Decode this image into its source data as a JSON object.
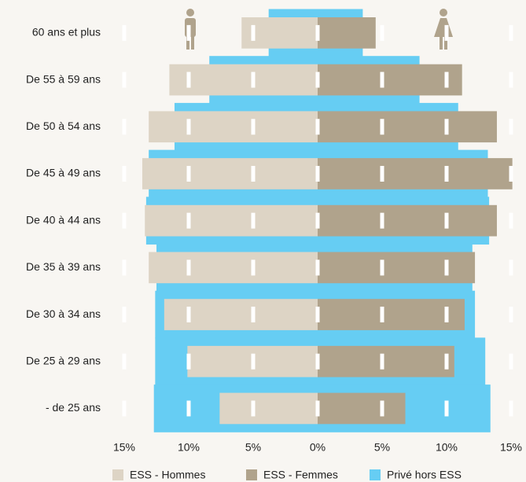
{
  "chart_data": {
    "type": "pyramid",
    "categories": [
      "60 ans et plus",
      "De 55 à 59 ans",
      "De 50 à 54 ans",
      "De 45 à 49 ans",
      "De 40 à 44 ans",
      "De 35 à 39 ans",
      "De 30 à 34 ans",
      "De 25 à 29 ans",
      "- de 25 ans"
    ],
    "series": [
      {
        "name": "ESS - Hommes",
        "color": "#ddd4c5",
        "side": "left",
        "values": [
          5.9,
          11.5,
          13.1,
          13.6,
          13.4,
          13.1,
          11.9,
          10.1,
          7.6
        ]
      },
      {
        "name": "ESS - Femmes",
        "color": "#b0a38c",
        "side": "right",
        "values": [
          4.5,
          11.2,
          13.9,
          15.1,
          13.9,
          12.2,
          11.4,
          10.6,
          6.8
        ]
      },
      {
        "name": "Privé hors ESS",
        "color": "#66cdf3",
        "side": "both",
        "values": [
          [
            3.8,
            3.5
          ],
          [
            8.4,
            7.9
          ],
          [
            11.1,
            10.9
          ],
          [
            13.1,
            13.2
          ],
          [
            13.3,
            13.3
          ],
          [
            12.5,
            12.0
          ],
          [
            12.6,
            12.2
          ],
          [
            12.6,
            13.0
          ],
          [
            12.7,
            13.4
          ]
        ]
      }
    ],
    "xlim": [
      -15,
      15
    ],
    "xticks": [
      {
        "value": -15,
        "label": "15%"
      },
      {
        "value": -10,
        "label": "10%"
      },
      {
        "value": -5,
        "label": "5%"
      },
      {
        "value": 0,
        "label": "0%"
      },
      {
        "value": 5,
        "label": "5%"
      },
      {
        "value": 10,
        "label": "10%"
      },
      {
        "value": 15,
        "label": "15%"
      }
    ],
    "grid": true
  }
}
